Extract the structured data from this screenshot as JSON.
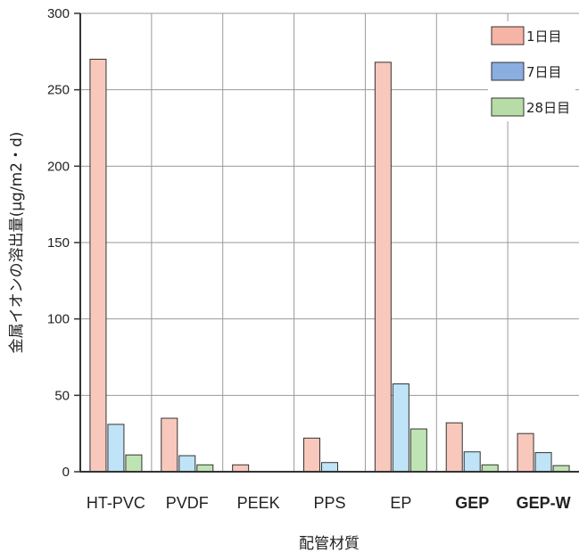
{
  "chart_data": {
    "type": "bar",
    "title": "",
    "xlabel": "配管材質",
    "ylabel": "金属イオンの溶出量(μg/m2・d)",
    "ylim": [
      0,
      300
    ],
    "yticks": [
      0,
      50,
      100,
      150,
      200,
      250,
      300
    ],
    "grid": true,
    "legend_position": "top-right",
    "categories": [
      "HT-PVC",
      "PVDF",
      "PEEK",
      "PPS",
      "EP",
      "GEP",
      "GEP-W"
    ],
    "category_colors": [
      "#222222",
      "#222222",
      "#222222",
      "#222222",
      "#222222",
      "#b39a4e",
      "#8a8e99"
    ],
    "series": [
      {
        "name": "1日目",
        "color": "#f8c8bc",
        "legend_color": "#f6b4a6",
        "values": [
          270,
          35,
          4.5,
          22,
          268,
          32,
          25
        ]
      },
      {
        "name": "7日目",
        "color": "#bfe3f7",
        "legend_color": "#8aaee0",
        "values": [
          31,
          10.5,
          0,
          6,
          57.5,
          13,
          12.5
        ]
      },
      {
        "name": "28日目",
        "color": "#bfe4b3",
        "legend_color": "#b8dca6",
        "values": [
          11,
          4.5,
          0,
          0,
          28,
          4.5,
          4
        ]
      }
    ]
  }
}
